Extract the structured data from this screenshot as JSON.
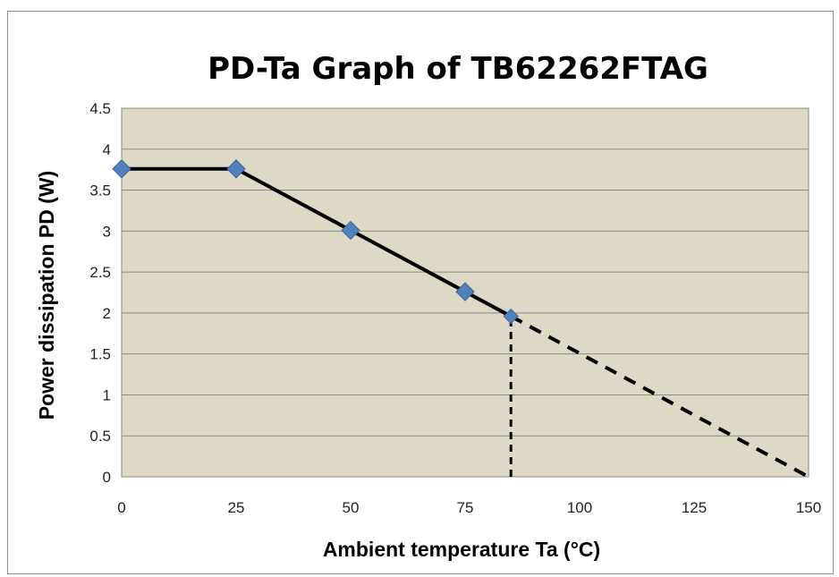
{
  "chart_data": {
    "type": "line",
    "title": "PD-Ta Graph of TB62262FTAG",
    "xlabel": "Ambient temperature Ta (°C)",
    "ylabel": "Power dissipation PD (W)",
    "xlim": [
      0,
      150
    ],
    "ylim": [
      0,
      4.5
    ],
    "x_ticks": [
      "0",
      "25",
      "50",
      "75",
      "100",
      "125",
      "150"
    ],
    "y_ticks": [
      "0",
      "0.5",
      "1",
      "1.5",
      "2",
      "2.5",
      "3",
      "3.5",
      "4",
      "4.5"
    ],
    "grid": true,
    "legend": "none",
    "plot_background": "#ddd9c4",
    "series": [
      {
        "x": [
          0,
          25,
          50,
          75,
          85
        ],
        "y": [
          3.76,
          3.76,
          3.01,
          2.26,
          1.96
        ],
        "style": "solid",
        "color": "#000000",
        "marker": "diamond",
        "marker_color": "#4f81bd"
      },
      {
        "x": [
          85,
          150
        ],
        "y": [
          1.96,
          0
        ],
        "style": "dashed",
        "color": "#000000"
      }
    ],
    "annotations": [
      {
        "type": "vertical-dashed-line",
        "x": 85,
        "y_from": 0,
        "y_to": 1.96
      }
    ]
  }
}
